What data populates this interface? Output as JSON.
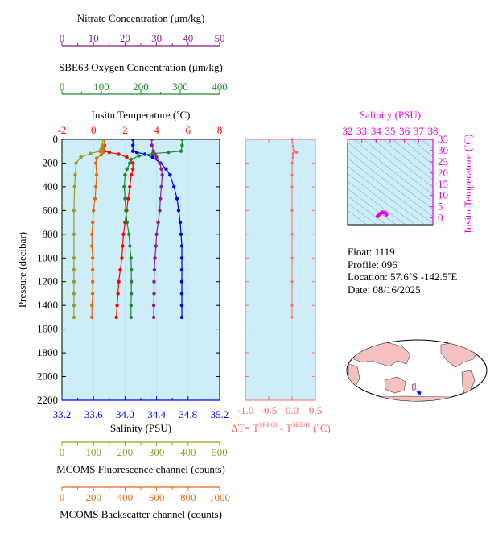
{
  "colors": {
    "nitrate": "#8b1f8b",
    "oxygen": "#1a8a2a",
    "temperature": "#ff0000",
    "salinity": "#0000ee",
    "fluorescence": "#9a9a2a",
    "backscatter": "#e06a10",
    "delta_t": "#ff6a6a",
    "ts_axis": "#ee00dd",
    "panel_bg": "#cdeef8"
  },
  "float_info": {
    "float": "Float:  1119",
    "profile": "Profile:  096",
    "location": "Location:  57.6˚S  -142.5˚E",
    "date": "Date:  08/16/2025"
  },
  "chart_data": [
    {
      "type": "line",
      "name": "main-profile-panel",
      "ylabel": "Pressure (decibar)",
      "ylim": [
        2200,
        0
      ],
      "y_ticks": [
        "0",
        "200",
        "400",
        "600",
        "800",
        "1000",
        "1200",
        "1400",
        "1600",
        "1800",
        "2000",
        "2200"
      ],
      "axes": [
        {
          "key": "nitrate",
          "label": "Nitrate Concentration (μm/kg)",
          "range": [
            0,
            50
          ],
          "ticks": [
            "0",
            "10",
            "20",
            "30",
            "40",
            "50"
          ]
        },
        {
          "key": "oxygen",
          "label": "SBE63 Oxygen Concentration (μm/kg)",
          "range": [
            0,
            400
          ],
          "ticks": [
            "0",
            "100",
            "200",
            "300",
            "400"
          ]
        },
        {
          "key": "temperature",
          "label": "Insitu Temperature (˚C)",
          "range": [
            -2,
            8
          ],
          "ticks": [
            "-2",
            "0",
            "2",
            "4",
            "6",
            "8"
          ]
        },
        {
          "key": "salinity",
          "label": "Salinity (PSU)",
          "range": [
            33.2,
            35.2
          ],
          "ticks": [
            "33.2",
            "33.6",
            "34.0",
            "34.4",
            "34.8",
            "35.2"
          ]
        },
        {
          "key": "fluorescence",
          "label": "MCOMS Fluorescence channel (counts)",
          "range": [
            0,
            500
          ],
          "ticks": [
            "0",
            "100",
            "200",
            "300",
            "400",
            "500"
          ]
        },
        {
          "key": "backscatter",
          "label": "MCOMS Backscatter channel (counts)",
          "range": [
            0,
            1000
          ],
          "ticks": [
            "0",
            "200",
            "400",
            "600",
            "800",
            "1000"
          ]
        }
      ],
      "series": [
        {
          "key": "temperature",
          "points": [
            [
              0,
              0.7
            ],
            [
              50,
              0.7
            ],
            [
              100,
              0.7
            ],
            [
              110,
              1.0
            ],
            [
              125,
              1.6
            ],
            [
              150,
              2.1
            ],
            [
              200,
              2.5
            ],
            [
              250,
              2.5
            ],
            [
              300,
              2.4
            ],
            [
              400,
              2.3
            ],
            [
              500,
              2.2
            ],
            [
              600,
              2.1
            ],
            [
              700,
              2.0
            ],
            [
              800,
              1.9
            ],
            [
              900,
              1.85
            ],
            [
              1000,
              1.8
            ],
            [
              1100,
              1.7
            ],
            [
              1200,
              1.6
            ],
            [
              1300,
              1.55
            ],
            [
              1400,
              1.5
            ],
            [
              1500,
              1.45
            ]
          ]
        },
        {
          "key": "salinity",
          "points": [
            [
              0,
              34.1
            ],
            [
              50,
              34.1
            ],
            [
              100,
              34.1
            ],
            [
              110,
              34.15
            ],
            [
              125,
              34.25
            ],
            [
              150,
              34.35
            ],
            [
              200,
              34.45
            ],
            [
              250,
              34.52
            ],
            [
              300,
              34.57
            ],
            [
              400,
              34.62
            ],
            [
              500,
              34.66
            ],
            [
              600,
              34.68
            ],
            [
              700,
              34.7
            ],
            [
              800,
              34.71
            ],
            [
              900,
              34.72
            ],
            [
              1000,
              34.72
            ],
            [
              1100,
              34.72
            ],
            [
              1200,
              34.72
            ],
            [
              1300,
              34.72
            ],
            [
              1400,
              34.72
            ],
            [
              1500,
              34.72
            ]
          ]
        },
        {
          "key": "nitrate",
          "points": [
            [
              0,
              28.5
            ],
            [
              50,
              28.5
            ],
            [
              100,
              29
            ],
            [
              125,
              29.5
            ],
            [
              150,
              30
            ],
            [
              200,
              31
            ],
            [
              250,
              31.5
            ],
            [
              300,
              31.8
            ],
            [
              400,
              31.5
            ],
            [
              500,
              31.2
            ],
            [
              600,
              31
            ],
            [
              700,
              30.5
            ],
            [
              800,
              30
            ],
            [
              900,
              29.8
            ],
            [
              1000,
              29.5
            ],
            [
              1100,
              29.3
            ],
            [
              1200,
              29.2
            ],
            [
              1300,
              29.2
            ],
            [
              1400,
              29.1
            ],
            [
              1500,
              29.1
            ]
          ]
        },
        {
          "key": "oxygen",
          "points": [
            [
              0,
              305
            ],
            [
              50,
              305
            ],
            [
              100,
              302
            ],
            [
              110,
              270
            ],
            [
              120,
              230
            ],
            [
              140,
              195
            ],
            [
              170,
              175
            ],
            [
              200,
              172
            ],
            [
              250,
              165
            ],
            [
              300,
              160
            ],
            [
              400,
              158
            ],
            [
              500,
              160
            ],
            [
              600,
              162
            ],
            [
              700,
              165
            ],
            [
              800,
              170
            ],
            [
              900,
              172
            ],
            [
              1000,
              175
            ],
            [
              1100,
              176
            ],
            [
              1200,
              176
            ],
            [
              1300,
              176
            ],
            [
              1400,
              175
            ],
            [
              1500,
              175
            ]
          ]
        },
        {
          "key": "fluorescence",
          "points": [
            [
              0,
              130
            ],
            [
              50,
              128
            ],
            [
              80,
              125
            ],
            [
              100,
              120
            ],
            [
              120,
              90
            ],
            [
              150,
              60
            ],
            [
              200,
              45
            ],
            [
              300,
              42
            ],
            [
              400,
              40
            ],
            [
              600,
              38
            ],
            [
              800,
              38
            ],
            [
              1000,
              38
            ],
            [
              1100,
              38
            ],
            [
              1200,
              38
            ],
            [
              1300,
              38
            ],
            [
              1400,
              38
            ],
            [
              1500,
              38
            ]
          ]
        },
        {
          "key": "backscatter",
          "points": [
            [
              0,
              270
            ],
            [
              80,
              265
            ],
            [
              110,
              260
            ],
            [
              130,
              250
            ],
            [
              160,
              220
            ],
            [
              200,
              215
            ],
            [
              300,
              220
            ],
            [
              400,
              215
            ],
            [
              500,
              210
            ],
            [
              600,
              200
            ],
            [
              700,
              195
            ],
            [
              800,
              190
            ],
            [
              900,
              190
            ],
            [
              1000,
              195
            ],
            [
              1100,
              195
            ],
            [
              1200,
              195
            ],
            [
              1300,
              195
            ],
            [
              1400,
              190
            ],
            [
              1500,
              190
            ]
          ]
        }
      ]
    },
    {
      "type": "line",
      "name": "delta-t-panel",
      "xlabel": "ΔT= T",
      "xlabel_sup1": "SBE63",
      "xlabel_mid": " - T",
      "xlabel_sup2": "SBE41",
      "xlabel_unit": " (˚C)",
      "xlim": [
        -1.0,
        0.5
      ],
      "x_ticks": [
        "-1.0",
        "-0.5",
        "0.0",
        "0.5"
      ],
      "ylim": [
        2200,
        0
      ],
      "points": [
        [
          0,
          0.0
        ],
        [
          60,
          0.02
        ],
        [
          90,
          0.04
        ],
        [
          100,
          0.05
        ],
        [
          110,
          0.1
        ],
        [
          120,
          0.02
        ],
        [
          150,
          0.02
        ],
        [
          200,
          0.0
        ],
        [
          300,
          0.0
        ],
        [
          400,
          0.0
        ],
        [
          600,
          0.0
        ],
        [
          800,
          0.0
        ],
        [
          1000,
          0.0
        ],
        [
          1200,
          0.0
        ],
        [
          1400,
          0.0
        ],
        [
          1500,
          0.0
        ]
      ]
    },
    {
      "type": "scatter",
      "name": "ts-diagram",
      "title": "Salinity (PSU)",
      "ylabel": "Insitu Temperature (˚C)",
      "xlim": [
        32,
        38
      ],
      "ylim": [
        -3,
        35
      ],
      "x_ticks": [
        "32",
        "33",
        "34",
        "35",
        "36",
        "37",
        "38"
      ],
      "y_ticks": [
        "0",
        "5",
        "10",
        "15",
        "20",
        "25",
        "30",
        "35"
      ],
      "points": [
        [
          34.1,
          0.7
        ],
        [
          34.15,
          1.0
        ],
        [
          34.25,
          1.6
        ],
        [
          34.35,
          2.1
        ],
        [
          34.45,
          2.5
        ],
        [
          34.52,
          2.5
        ],
        [
          34.57,
          2.4
        ],
        [
          34.62,
          2.3
        ],
        [
          34.66,
          2.2
        ],
        [
          34.68,
          2.1
        ],
        [
          34.7,
          2.0
        ],
        [
          34.71,
          1.9
        ],
        [
          34.72,
          1.8
        ],
        [
          34.72,
          1.6
        ],
        [
          34.72,
          1.5
        ],
        [
          34.72,
          1.45
        ]
      ]
    },
    {
      "type": "map",
      "name": "location-map",
      "marker": {
        "lat": -57.6,
        "lon": -142.5
      }
    }
  ]
}
